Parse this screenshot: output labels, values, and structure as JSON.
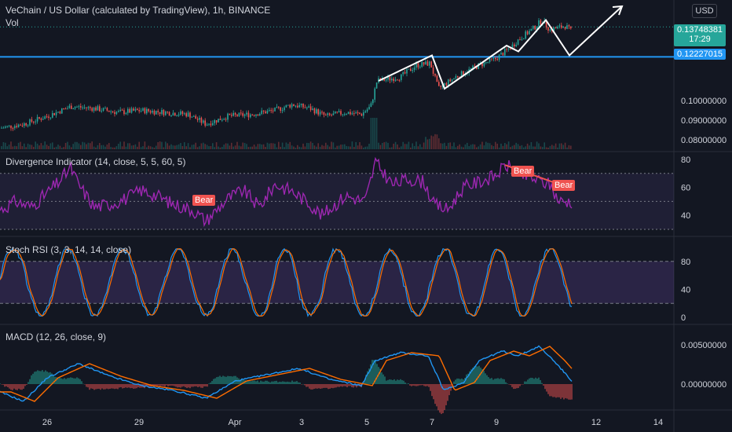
{
  "header": {
    "title": "VeChain / US Dollar (calculated by TradingView), 1h, BINANCE",
    "volume": "Vol",
    "currency": "USD"
  },
  "panes": {
    "divergence": "Divergence Indicator (14, close, 5, 5, 60, 5)",
    "stoch": "Stoch RSI (3, 3, 14, 14, close)",
    "macd": "MACD (12, 26, close, 9)"
  },
  "price_tags": {
    "last_price": "0.13748381",
    "countdown": "17:29",
    "line_price": "0.12227015"
  },
  "labels": [
    "Bear",
    "Bear",
    "Bear"
  ],
  "colors": {
    "background": "#131722",
    "up": "#26a69a",
    "down": "#ef5350",
    "divergence": "#9c27b0",
    "horizontal_line": "#2196f3",
    "stoch_k": "#2196f3",
    "stoch_d": "#ff6d00",
    "macd": "#2196f3",
    "signal": "#ff6d00"
  },
  "chart_data": {
    "type": "candlestick",
    "x_ticks": [
      "26",
      "29",
      "Apr",
      "3",
      "5",
      "7",
      "9",
      "12",
      "14"
    ],
    "price_ticks": [
      "0.08000000",
      "0.09000000",
      "0.10000000"
    ],
    "horizontal_line": 0.12227015,
    "last_price": 0.13748381,
    "price_path": [
      [
        0,
        0.086
      ],
      [
        30,
        0.088
      ],
      [
        60,
        0.092
      ],
      [
        90,
        0.097
      ],
      [
        120,
        0.096
      ],
      [
        150,
        0.094
      ],
      [
        180,
        0.095
      ],
      [
        210,
        0.094
      ],
      [
        240,
        0.093
      ],
      [
        262,
        0.088
      ],
      [
        290,
        0.092
      ],
      [
        320,
        0.093
      ],
      [
        350,
        0.095
      ],
      [
        372,
        0.098
      ],
      [
        395,
        0.096
      ],
      [
        415,
        0.092
      ],
      [
        440,
        0.094
      ],
      [
        460,
        0.093
      ],
      [
        472,
        0.097
      ],
      [
        480,
        0.11
      ],
      [
        510,
        0.112
      ],
      [
        530,
        0.118
      ],
      [
        548,
        0.119
      ],
      [
        558,
        0.106
      ],
      [
        580,
        0.112
      ],
      [
        610,
        0.118
      ],
      [
        630,
        0.121
      ],
      [
        650,
        0.127
      ],
      [
        660,
        0.131
      ],
      [
        680,
        0.137
      ],
      [
        690,
        0.141
      ],
      [
        700,
        0.136
      ],
      [
        720,
        0.138
      ],
      [
        728,
        0.135
      ]
    ],
    "pattern_line": [
      [
        482,
        0.11
      ],
      [
        550,
        0.123
      ],
      [
        566,
        0.106
      ],
      [
        645,
        0.128
      ],
      [
        660,
        0.125
      ],
      [
        695,
        0.141
      ],
      [
        725,
        0.123
      ],
      [
        792,
        0.148
      ]
    ],
    "divergence": {
      "levels": [
        70,
        30,
        50
      ],
      "axis": [
        80,
        60,
        40
      ],
      "path": [
        [
          0,
          44
        ],
        [
          20,
          50
        ],
        [
          40,
          46
        ],
        [
          60,
          56
        ],
        [
          75,
          64
        ],
        [
          90,
          74
        ],
        [
          100,
          62
        ],
        [
          120,
          46
        ],
        [
          140,
          48
        ],
        [
          160,
          52
        ],
        [
          180,
          58
        ],
        [
          200,
          54
        ],
        [
          220,
          48
        ],
        [
          245,
          44
        ],
        [
          262,
          36
        ],
        [
          290,
          52
        ],
        [
          310,
          58
        ],
        [
          330,
          46
        ],
        [
          350,
          62
        ],
        [
          370,
          58
        ],
        [
          395,
          48
        ],
        [
          410,
          40
        ],
        [
          440,
          54
        ],
        [
          465,
          50
        ],
        [
          478,
          78
        ],
        [
          500,
          62
        ],
        [
          520,
          66
        ],
        [
          540,
          64
        ],
        [
          552,
          48
        ],
        [
          570,
          44
        ],
        [
          590,
          60
        ],
        [
          610,
          64
        ],
        [
          630,
          68
        ],
        [
          645,
          76
        ],
        [
          660,
          70
        ],
        [
          680,
          66
        ],
        [
          700,
          62
        ],
        [
          712,
          50
        ],
        [
          728,
          50
        ]
      ]
    },
    "stoch": {
      "bands": [
        80,
        20
      ],
      "axis": [
        80,
        40,
        0
      ]
    },
    "macd": {
      "axis": [
        "0.00500000",
        "0.00000000"
      ],
      "path": [
        [
          0,
          -0.001
        ],
        [
          30,
          -0.0022
        ],
        [
          60,
          0.0008
        ],
        [
          100,
          0.0026
        ],
        [
          140,
          0.001
        ],
        [
          180,
          -0.0002
        ],
        [
          220,
          -0.0008
        ],
        [
          262,
          -0.0018
        ],
        [
          300,
          0.0004
        ],
        [
          340,
          0.0012
        ],
        [
          380,
          0.002
        ],
        [
          420,
          0.0006
        ],
        [
          460,
          -0.0002
        ],
        [
          478,
          0.003
        ],
        [
          510,
          0.004
        ],
        [
          545,
          0.0036
        ],
        [
          565,
          -0.0008
        ],
        [
          590,
          0.0002
        ],
        [
          610,
          0.003
        ],
        [
          640,
          0.0042
        ],
        [
          660,
          0.0036
        ],
        [
          686,
          0.0048
        ],
        [
          705,
          0.003
        ],
        [
          728,
          0.0004
        ]
      ]
    }
  }
}
